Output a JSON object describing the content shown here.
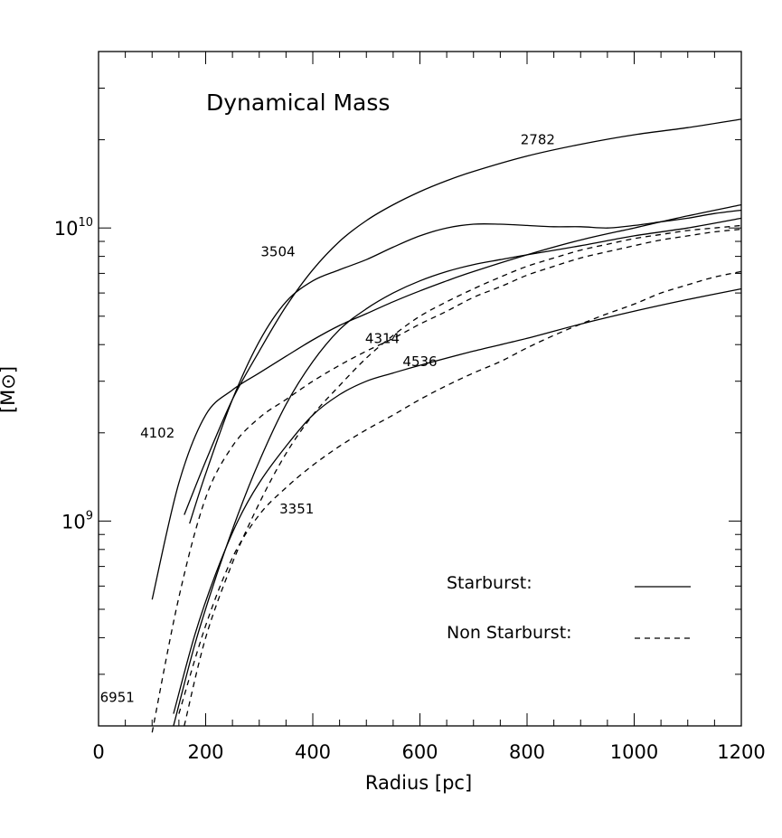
{
  "chart_data": {
    "type": "line",
    "title": "Dynamical Mass",
    "xlabel": "Radius [pc]",
    "ylabel": "[M⊙]",
    "xlim": [
      0,
      1200
    ],
    "ylim": [
      200000000,
      40000000000
    ],
    "yscale": "log",
    "x_ticks": [
      "0",
      "200",
      "400",
      "600",
      "800",
      "1000",
      "1200"
    ],
    "y_ticks": [
      {
        "base": "10",
        "exp": "9",
        "value": 1000000000
      },
      {
        "base": "10",
        "exp": "10",
        "value": 10000000000
      }
    ],
    "legend": [
      {
        "label": "Starburst:",
        "style": "solid"
      },
      {
        "label": "Non Starburst:",
        "style": "dashed"
      }
    ],
    "series": [
      {
        "name": "2782",
        "style": "solid",
        "label_at": [
          820,
          20000000000.0
        ],
        "x": [
          160,
          200,
          250,
          300,
          350,
          400,
          450,
          500,
          550,
          600,
          650,
          700,
          800,
          900,
          1000,
          1100,
          1200
        ],
        "y": [
          1050000000.0,
          1600000000.0,
          2600000000.0,
          3800000000.0,
          5400000000.0,
          7200000000.0,
          9000000000.0,
          10600000000.0,
          12000000000.0,
          13300000000.0,
          14500000000.0,
          15600000000.0,
          17600000000.0,
          19300000000.0,
          20800000000.0,
          22000000000.0,
          23500000000.0
        ]
      },
      {
        "name": "3504",
        "style": "solid",
        "label_at": [
          335,
          8300000000.0
        ],
        "x": [
          170,
          200,
          250,
          300,
          350,
          400,
          450,
          500,
          550,
          600,
          650,
          700,
          750,
          800,
          850,
          900,
          950,
          1000,
          1050,
          1100,
          1150,
          1200
        ],
        "y": [
          980000000.0,
          1450000000.0,
          2600000000.0,
          4100000000.0,
          5600000000.0,
          6600000000.0,
          7200000000.0,
          7800000000.0,
          8600000000.0,
          9400000000.0,
          10000000000.0,
          10300000000.0,
          10300000000.0,
          10200000000.0,
          10100000000.0,
          10100000000.0,
          10000000000.0,
          10200000000.0,
          10500000000.0,
          10800000000.0,
          11200000000.0,
          11500000000.0
        ]
      },
      {
        "name": "4102",
        "style": "solid",
        "label_at": [
          110,
          2000000000.0
        ],
        "x": [
          100,
          150,
          200,
          250,
          300,
          350,
          400,
          450,
          500,
          550,
          600,
          650,
          700,
          800,
          900,
          1000,
          1100,
          1200
        ],
        "y": [
          540000000.0,
          1350000000.0,
          2300000000.0,
          2800000000.0,
          3200000000.0,
          3650000000.0,
          4150000000.0,
          4650000000.0,
          5100000000.0,
          5600000000.0,
          6100000000.0,
          6600000000.0,
          7100000000.0,
          8100000000.0,
          9100000000.0,
          10000000000.0,
          11000000000.0,
          12000000000.0
        ]
      },
      {
        "name": "4536",
        "style": "solid",
        "label_at": [
          600,
          3500000000.0
        ],
        "x": [
          140,
          180,
          220,
          260,
          300,
          350,
          400,
          450,
          500,
          550,
          600,
          700,
          800,
          900,
          1000,
          1100,
          1200
        ],
        "y": [
          220000000.0,
          410000000.0,
          670000000.0,
          1000000000.0,
          1350000000.0,
          1800000000.0,
          2300000000.0,
          2700000000.0,
          3000000000.0,
          3200000000.0,
          3400000000.0,
          3800000000.0,
          4200000000.0,
          4700000000.0,
          5200000000.0,
          5700000000.0,
          6200000000.0
        ]
      },
      {
        "name": "6951",
        "style": "solid",
        "label_at": [
          35,
          250000000.0
        ],
        "x": [
          140,
          180,
          220,
          260,
          300,
          350,
          400,
          450,
          500,
          550,
          600,
          650,
          700,
          750,
          800,
          900,
          1000,
          1100,
          1200
        ],
        "y": [
          200000000.0,
          380000000.0,
          650000000.0,
          1050000000.0,
          1600000000.0,
          2500000000.0,
          3500000000.0,
          4500000000.0,
          5300000000.0,
          6000000000.0,
          6600000000.0,
          7100000000.0,
          7500000000.0,
          7800000000.0,
          8100000000.0,
          8700000000.0,
          9400000000.0,
          10000000000.0,
          10800000000.0
        ]
      },
      {
        "name": "4314",
        "style": "dashed",
        "label_at": [
          530,
          4200000000.0
        ],
        "x": [
          100,
          150,
          200,
          250,
          300,
          350,
          400,
          450,
          500,
          550,
          600,
          650,
          700,
          750,
          800,
          850,
          900,
          950,
          1000,
          1050,
          1100,
          1150,
          1200
        ],
        "y": [
          190000000.0,
          550000000.0,
          1200000000.0,
          1800000000.0,
          2250000000.0,
          2600000000.0,
          3000000000.0,
          3400000000.0,
          3800000000.0,
          4200000000.0,
          4700000000.0,
          5200000000.0,
          5800000000.0,
          6300000000.0,
          6900000000.0,
          7400000000.0,
          7900000000.0,
          8300000000.0,
          8700000000.0,
          9100000000.0,
          9400000000.0,
          9700000000.0,
          9900000000.0
        ]
      },
      {
        "name": "3351",
        "style": "dashed",
        "label_at": [
          370,
          1100000000.0
        ],
        "x": [
          150,
          200,
          250,
          300,
          350,
          400,
          450,
          500,
          550,
          600,
          650,
          700,
          750,
          800,
          850,
          900,
          950,
          1000,
          1050,
          1100,
          1150,
          1200
        ],
        "y": [
          220000000.0,
          440000000.0,
          750000000.0,
          1050000000.0,
          1300000000.0,
          1550000000.0,
          1800000000.0,
          2050000000.0,
          2300000000.0,
          2600000000.0,
          2900000000.0,
          3200000000.0,
          3500000000.0,
          3900000000.0,
          4300000000.0,
          4700000000.0,
          5100000000.0,
          5500000000.0,
          6000000000.0,
          6400000000.0,
          6800000000.0,
          7100000000.0
        ]
      },
      {
        "name": "",
        "style": "dashed",
        "x": [
          160,
          200,
          250,
          300,
          350,
          400,
          450,
          500,
          550,
          600,
          650,
          700,
          750,
          800,
          850,
          900,
          950,
          1000,
          1050,
          1100,
          1150,
          1200
        ],
        "y": [
          200000000.0,
          400000000.0,
          720000000.0,
          1150000000.0,
          1700000000.0,
          2300000000.0,
          2900000000.0,
          3600000000.0,
          4300000000.0,
          5000000000.0,
          5600000000.0,
          6200000000.0,
          6800000000.0,
          7400000000.0,
          7900000000.0,
          8400000000.0,
          8800000000.0,
          9200000000.0,
          9500000000.0,
          9800000000.0,
          10000000000.0,
          10200000000.0
        ]
      }
    ]
  }
}
